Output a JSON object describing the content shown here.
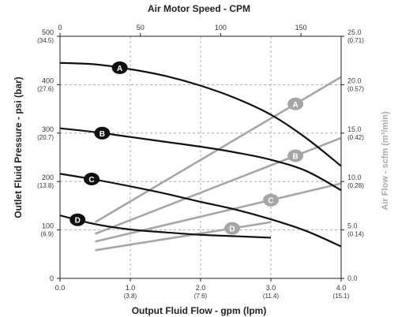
{
  "chart_data": {
    "type": "line",
    "title": "Air Motor Speed - CPM",
    "xlabel": "Output Fluid Flow - gpm (lpm)",
    "ylabel": "Outlet Fluid Pressure - psi (bar)",
    "y2label": "Air Flow - scfm (m³/min)",
    "xlim": [
      0,
      4
    ],
    "ylim": [
      0,
      500
    ],
    "y2lim": [
      0,
      25
    ],
    "top_xlim": [
      0,
      175
    ],
    "grid": true,
    "x_ticks": [
      {
        "value": 0,
        "label": "0.0",
        "sub": ""
      },
      {
        "value": 1,
        "label": "1.0",
        "sub": "(3.8)"
      },
      {
        "value": 2,
        "label": "2.0",
        "sub": "(7.6)"
      },
      {
        "value": 3,
        "label": "3.0",
        "sub": "(11.4)"
      },
      {
        "value": 4,
        "label": "4.0",
        "sub": "(15.1)"
      }
    ],
    "top_ticks": [
      {
        "value": 0,
        "label": "0"
      },
      {
        "value": 50,
        "label": "50"
      },
      {
        "value": 100,
        "label": "100"
      },
      {
        "value": 150,
        "label": "150"
      }
    ],
    "y_ticks": [
      {
        "value": 0,
        "label": "0",
        "sub": ""
      },
      {
        "value": 100,
        "label": "100",
        "sub": "(6.9)"
      },
      {
        "value": 200,
        "label": "200",
        "sub": "(13.8)"
      },
      {
        "value": 300,
        "label": "300",
        "sub": "(20.7)"
      },
      {
        "value": 400,
        "label": "400",
        "sub": "(27.6)"
      },
      {
        "value": 500,
        "label": "500",
        "sub": "(34.5)"
      }
    ],
    "y2_ticks": [
      {
        "value": 0,
        "label": "0.0",
        "sub": ""
      },
      {
        "value": 5,
        "label": "5.0",
        "sub": "(0.14)"
      },
      {
        "value": 10,
        "label": "10.0",
        "sub": "(0.28)"
      },
      {
        "value": 15,
        "label": "15.0",
        "sub": "(0.42)"
      },
      {
        "value": 20,
        "label": "20.0",
        "sub": "(0.57)"
      },
      {
        "value": 25,
        "label": "25.0",
        "sub": "(0.71)"
      }
    ],
    "pressure_series": [
      {
        "name": "A",
        "color": "#111111",
        "label_at": 0.85,
        "points": [
          [
            0,
            445
          ],
          [
            0.5,
            442
          ],
          [
            1,
            432
          ],
          [
            1.5,
            418
          ],
          [
            2,
            398
          ],
          [
            2.5,
            372
          ],
          [
            3,
            338
          ],
          [
            3.5,
            290
          ],
          [
            4,
            232
          ]
        ]
      },
      {
        "name": "B",
        "color": "#111111",
        "label_at": 0.6,
        "points": [
          [
            0,
            310
          ],
          [
            0.5,
            302
          ],
          [
            1,
            292
          ],
          [
            1.5,
            282
          ],
          [
            2,
            272
          ],
          [
            2.5,
            260
          ],
          [
            3,
            245
          ],
          [
            3.5,
            222
          ],
          [
            4,
            182
          ]
        ]
      },
      {
        "name": "C",
        "color": "#111111",
        "label_at": 0.45,
        "points": [
          [
            0,
            216
          ],
          [
            0.5,
            204
          ],
          [
            1,
            190
          ],
          [
            1.5,
            175
          ],
          [
            2,
            158
          ],
          [
            2.5,
            142
          ],
          [
            3,
            122
          ],
          [
            3.5,
            98
          ],
          [
            4,
            66
          ]
        ]
      },
      {
        "name": "D",
        "color": "#111111",
        "label_at": 0.25,
        "points": [
          [
            0,
            130
          ],
          [
            0.5,
            112
          ],
          [
            1,
            101
          ],
          [
            1.5,
            95
          ],
          [
            2,
            90
          ],
          [
            2.5,
            87
          ],
          [
            3,
            84
          ]
        ]
      }
    ],
    "airflow_series": [
      {
        "name": "A",
        "color": "#a6a6a6",
        "label_at": 3.35,
        "points": [
          [
            0.5,
            5.8
          ],
          [
            4.0,
            20.8
          ]
        ]
      },
      {
        "name": "B",
        "color": "#a6a6a6",
        "label_at": 3.35,
        "points": [
          [
            0.5,
            4.6
          ],
          [
            4.0,
            14.5
          ]
        ]
      },
      {
        "name": "C",
        "color": "#a6a6a6",
        "label_at": 3.0,
        "points": [
          [
            0.5,
            3.8
          ],
          [
            4.0,
            9.8
          ]
        ]
      },
      {
        "name": "D",
        "color": "#a6a6a6",
        "label_at": 2.45,
        "points": [
          [
            0.5,
            2.9
          ],
          [
            3.0,
            5.8
          ]
        ]
      }
    ]
  }
}
